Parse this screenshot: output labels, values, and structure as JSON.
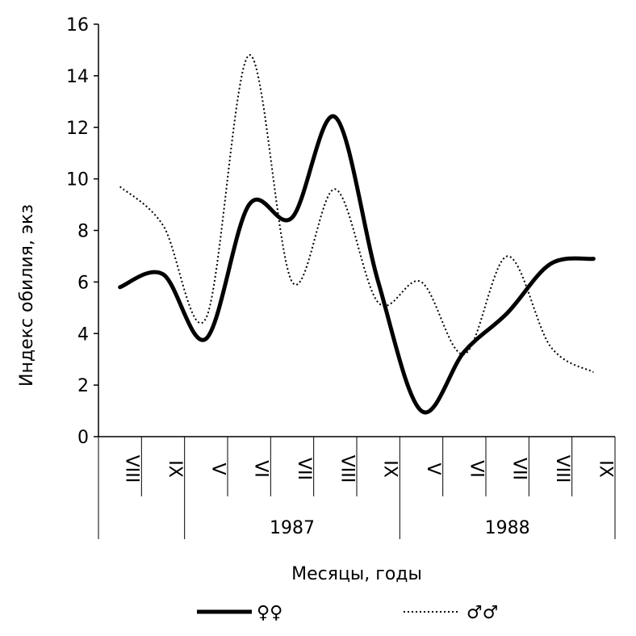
{
  "chart_data": {
    "type": "line",
    "ylabel": "Индекс обилия, экз",
    "xlabel": "Месяцы, годы",
    "ylim": [
      0,
      16
    ],
    "y_ticks": [
      "0",
      "2",
      "4",
      "6",
      "8",
      "10",
      "12",
      "14",
      "16"
    ],
    "categories": [
      "VIII",
      "IX",
      "V",
      "VI",
      "VII",
      "VIII",
      "IX",
      "V",
      "VI",
      "VII",
      "VIII",
      "IX"
    ],
    "year_groups": [
      {
        "label": "",
        "count": 2
      },
      {
        "label": "1987",
        "count": 5
      },
      {
        "label": "1988",
        "count": 5
      }
    ],
    "series": [
      {
        "name": "♀♀",
        "style": "solid",
        "values": [
          5.8,
          6.3,
          3.8,
          9.0,
          8.5,
          12.4,
          6.0,
          1.0,
          3.3,
          4.8,
          6.7,
          6.9
        ]
      },
      {
        "name": "♂♂",
        "style": "dotted",
        "values": [
          9.7,
          8.2,
          4.6,
          14.8,
          6.0,
          9.6,
          5.2,
          6.0,
          3.2,
          7.0,
          3.5,
          2.5
        ]
      }
    ],
    "grid": false,
    "legend_position": "bottom"
  }
}
